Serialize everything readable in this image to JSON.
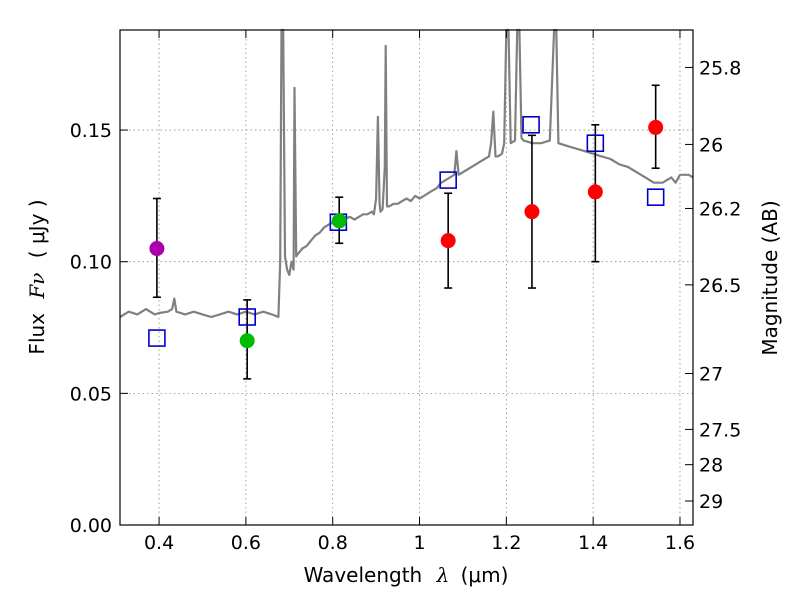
{
  "chart_data": {
    "type": "scatter",
    "xlabel_prefix": "Wavelength",
    "xlabel_var": "λ",
    "xlabel_unit": "(μm)",
    "ylabel_prefix": "Flux",
    "ylabel_var": "Fν",
    "ylabel_unit": "( μJy )",
    "y2label": "Magnitude (AB)",
    "xlim": [
      0.31,
      1.63
    ],
    "ylim": [
      0.0,
      0.188
    ],
    "grid": true,
    "x_ticks": [
      {
        "value": 0.4,
        "label": "0.4"
      },
      {
        "value": 0.6,
        "label": "0.6"
      },
      {
        "value": 0.8,
        "label": "0.8"
      },
      {
        "value": 1.0,
        "label": "1"
      },
      {
        "value": 1.2,
        "label": "1.2"
      },
      {
        "value": 1.4,
        "label": "1.4"
      },
      {
        "value": 1.6,
        "label": "1.6"
      }
    ],
    "y_ticks": [
      {
        "value": 0.0,
        "label": "0.00"
      },
      {
        "value": 0.05,
        "label": "0.05"
      },
      {
        "value": 0.1,
        "label": "0.10"
      },
      {
        "value": 0.15,
        "label": "0.15"
      }
    ],
    "y2_ticks": [
      {
        "mag": 25.8,
        "label": "25.8"
      },
      {
        "mag": 26.0,
        "label": "26"
      },
      {
        "mag": 26.2,
        "label": "26.2"
      },
      {
        "mag": 26.5,
        "label": "26.5"
      },
      {
        "mag": 27.0,
        "label": "27"
      },
      {
        "mag": 27.5,
        "label": "27.5"
      },
      {
        "mag": 28.0,
        "label": "28"
      },
      {
        "mag": 29.0,
        "label": "29"
      }
    ],
    "colors": {
      "spectrum": "#808080",
      "model": "#0000cc",
      "purple": "#aa00aa",
      "green": "#00bb00",
      "red": "#ff0000",
      "errorbar": "#000000",
      "grid": "#8c8c8c"
    },
    "observed": [
      {
        "x": 0.395,
        "y": 0.105,
        "yerr_low": 0.0865,
        "yerr_high": 0.124,
        "color": "purple"
      },
      {
        "x": 0.603,
        "y": 0.07,
        "yerr_low": 0.0555,
        "yerr_high": 0.0855,
        "color": "green"
      },
      {
        "x": 0.815,
        "y": 0.1155,
        "yerr_low": 0.107,
        "yerr_high": 0.1245,
        "color": "green"
      },
      {
        "x": 1.066,
        "y": 0.108,
        "yerr_low": 0.09,
        "yerr_high": 0.126,
        "color": "red"
      },
      {
        "x": 1.259,
        "y": 0.119,
        "yerr_low": 0.09,
        "yerr_high": 0.148,
        "color": "red"
      },
      {
        "x": 1.405,
        "y": 0.1265,
        "yerr_low": 0.1,
        "yerr_high": 0.152,
        "color": "red"
      },
      {
        "x": 1.544,
        "y": 0.151,
        "yerr_low": 0.1355,
        "yerr_high": 0.167,
        "color": "red"
      }
    ],
    "model_photometry": [
      {
        "x": 0.395,
        "y": 0.071
      },
      {
        "x": 0.603,
        "y": 0.079
      },
      {
        "x": 0.813,
        "y": 0.115
      },
      {
        "x": 1.066,
        "y": 0.131
      },
      {
        "x": 1.257,
        "y": 0.152
      },
      {
        "x": 1.405,
        "y": 0.145
      },
      {
        "x": 1.544,
        "y": 0.1245
      }
    ],
    "spectrum": [
      [
        0.31,
        0.079
      ],
      [
        0.33,
        0.081
      ],
      [
        0.35,
        0.08
      ],
      [
        0.37,
        0.082
      ],
      [
        0.39,
        0.08
      ],
      [
        0.4,
        0.0805
      ],
      [
        0.42,
        0.081
      ],
      [
        0.43,
        0.082
      ],
      [
        0.435,
        0.086
      ],
      [
        0.44,
        0.081
      ],
      [
        0.46,
        0.08
      ],
      [
        0.48,
        0.081
      ],
      [
        0.5,
        0.08
      ],
      [
        0.52,
        0.079
      ],
      [
        0.54,
        0.08
      ],
      [
        0.56,
        0.081
      ],
      [
        0.58,
        0.08
      ],
      [
        0.6,
        0.081
      ],
      [
        0.62,
        0.08
      ],
      [
        0.64,
        0.081
      ],
      [
        0.66,
        0.08
      ],
      [
        0.675,
        0.079
      ],
      [
        0.679,
        0.1
      ],
      [
        0.682,
        0.188
      ],
      [
        0.686,
        0.188
      ],
      [
        0.69,
        0.102
      ],
      [
        0.695,
        0.097
      ],
      [
        0.7,
        0.095
      ],
      [
        0.705,
        0.1
      ],
      [
        0.71,
        0.097
      ],
      [
        0.712,
        0.166
      ],
      [
        0.716,
        0.102
      ],
      [
        0.72,
        0.103
      ],
      [
        0.73,
        0.105
      ],
      [
        0.74,
        0.106
      ],
      [
        0.75,
        0.108
      ],
      [
        0.76,
        0.11
      ],
      [
        0.77,
        0.111
      ],
      [
        0.78,
        0.113
      ],
      [
        0.79,
        0.114
      ],
      [
        0.8,
        0.115
      ],
      [
        0.82,
        0.116
      ],
      [
        0.84,
        0.117
      ],
      [
        0.85,
        0.116
      ],
      [
        0.86,
        0.117
      ],
      [
        0.87,
        0.118
      ],
      [
        0.88,
        0.118
      ],
      [
        0.89,
        0.119
      ],
      [
        0.895,
        0.118
      ],
      [
        0.9,
        0.124
      ],
      [
        0.904,
        0.155
      ],
      [
        0.908,
        0.122
      ],
      [
        0.91,
        0.119
      ],
      [
        0.915,
        0.12
      ],
      [
        0.92,
        0.136
      ],
      [
        0.922,
        0.182
      ],
      [
        0.925,
        0.121
      ],
      [
        0.93,
        0.121
      ],
      [
        0.94,
        0.122
      ],
      [
        0.95,
        0.122
      ],
      [
        0.96,
        0.123
      ],
      [
        0.97,
        0.124
      ],
      [
        0.98,
        0.123
      ],
      [
        0.99,
        0.125
      ],
      [
        1.0,
        0.124
      ],
      [
        1.01,
        0.125
      ],
      [
        1.02,
        0.126
      ],
      [
        1.03,
        0.127
      ],
      [
        1.04,
        0.128
      ],
      [
        1.05,
        0.13
      ],
      [
        1.06,
        0.131
      ],
      [
        1.07,
        0.132
      ],
      [
        1.08,
        0.133
      ],
      [
        1.085,
        0.142
      ],
      [
        1.09,
        0.133
      ],
      [
        1.1,
        0.134
      ],
      [
        1.11,
        0.135
      ],
      [
        1.12,
        0.136
      ],
      [
        1.13,
        0.137
      ],
      [
        1.14,
        0.138
      ],
      [
        1.15,
        0.139
      ],
      [
        1.16,
        0.14
      ],
      [
        1.165,
        0.145
      ],
      [
        1.17,
        0.157
      ],
      [
        1.175,
        0.14
      ],
      [
        1.18,
        0.14
      ],
      [
        1.19,
        0.141
      ],
      [
        1.195,
        0.145
      ],
      [
        1.2,
        0.188
      ],
      [
        1.205,
        0.188
      ],
      [
        1.21,
        0.145
      ],
      [
        1.22,
        0.146
      ],
      [
        1.225,
        0.188
      ],
      [
        1.23,
        0.188
      ],
      [
        1.235,
        0.147
      ],
      [
        1.24,
        0.146
      ],
      [
        1.26,
        0.145
      ],
      [
        1.28,
        0.145
      ],
      [
        1.3,
        0.146
      ],
      [
        1.31,
        0.188
      ],
      [
        1.315,
        0.188
      ],
      [
        1.32,
        0.145
      ],
      [
        1.34,
        0.144
      ],
      [
        1.36,
        0.143
      ],
      [
        1.38,
        0.142
      ],
      [
        1.4,
        0.141
      ],
      [
        1.42,
        0.14
      ],
      [
        1.44,
        0.139
      ],
      [
        1.46,
        0.137
      ],
      [
        1.48,
        0.136
      ],
      [
        1.5,
        0.134
      ],
      [
        1.52,
        0.132
      ],
      [
        1.54,
        0.13
      ],
      [
        1.56,
        0.13
      ],
      [
        1.58,
        0.132
      ],
      [
        1.59,
        0.13
      ],
      [
        1.6,
        0.133
      ],
      [
        1.62,
        0.133
      ],
      [
        1.63,
        0.132
      ]
    ]
  }
}
